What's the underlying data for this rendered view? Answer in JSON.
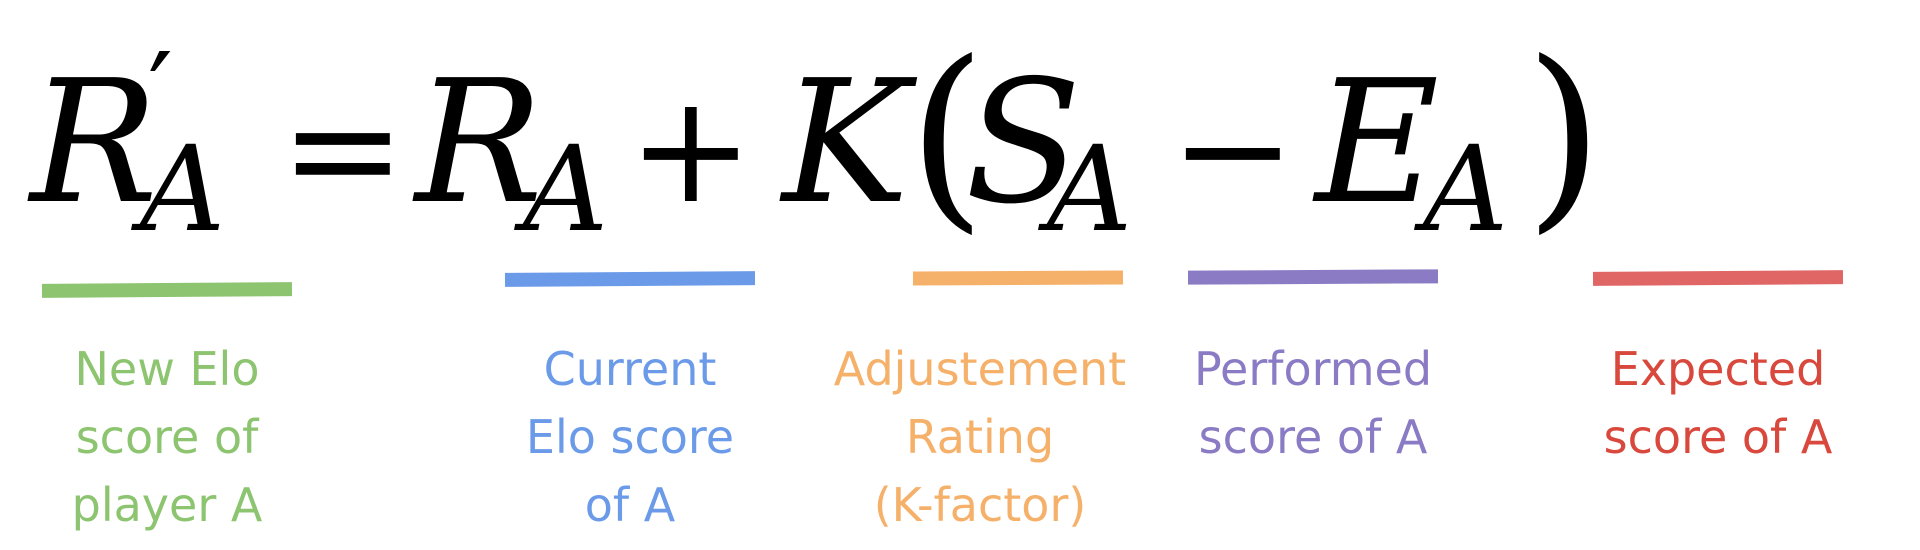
{
  "formula": {
    "lhs_var": "R",
    "lhs_prime": "′",
    "lhs_sub": "A",
    "equals": "=",
    "r_var": "R",
    "r_sub": "A",
    "plus": "+",
    "k_var": "K",
    "open_paren": "(",
    "s_var": "S",
    "s_sub": "A",
    "minus": "−",
    "e_var": "E",
    "e_sub": "A",
    "close_paren": ")"
  },
  "labels": [
    {
      "text": "New Elo\nscore of\nplayer A",
      "color": "#8cc46f"
    },
    {
      "text": "Current\nElo score\nof A",
      "color": "#6b9be8"
    },
    {
      "text": "Adjustement\nRating\n(K-factor)",
      "color": "#f5b06a"
    },
    {
      "text": "Performed\nscore of A",
      "color": "#8a7bc4"
    },
    {
      "text": "Expected\nscore of A",
      "color": "#d9483d"
    }
  ],
  "underline_colors": [
    "#8cc46f",
    "#6b9be8",
    "#f5b06a",
    "#8a7bc4",
    "#e06666"
  ]
}
